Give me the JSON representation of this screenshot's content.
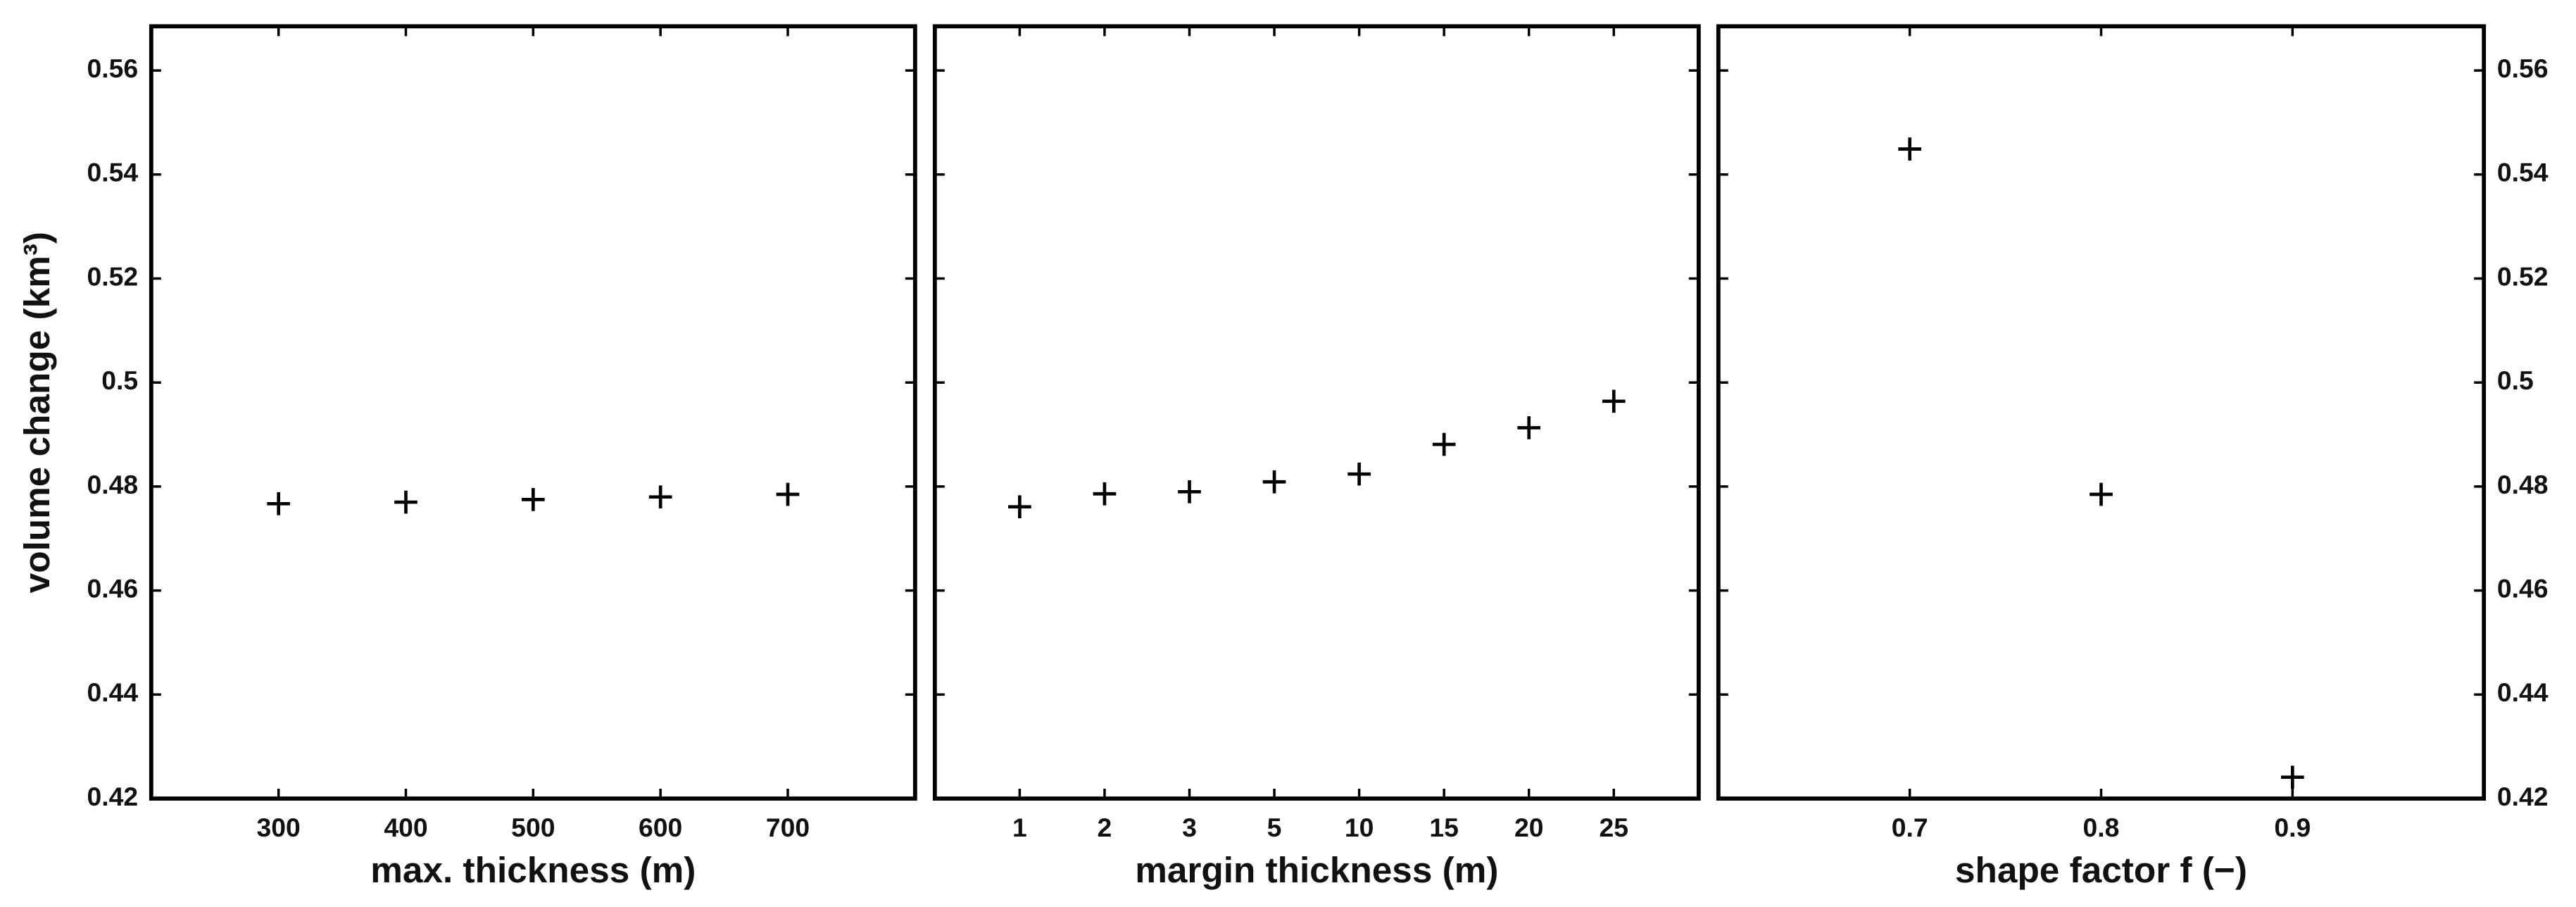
{
  "chart_data": [
    {
      "type": "scatter",
      "xlabel": "max. thickness (m)",
      "ylabel": "volume change (km³)",
      "x": [
        300,
        400,
        500,
        600,
        700
      ],
      "values": [
        0.4767,
        0.477,
        0.4775,
        0.478,
        0.4785
      ],
      "xlim": [
        200,
        800
      ],
      "xticks": [
        300,
        400,
        500,
        600,
        700
      ],
      "ylim": [
        0.42,
        0.5685
      ],
      "yticks": [
        0.42,
        0.44,
        0.46,
        0.48,
        0.5,
        0.52,
        0.54,
        0.56
      ],
      "ytick_labels": "left",
      "color": "#000000",
      "marker": "+"
    },
    {
      "type": "scatter",
      "xlabel": "margin thickness (m)",
      "categories": [
        "1",
        "2",
        "3",
        "5",
        "10",
        "15",
        "20",
        "25"
      ],
      "values": [
        0.4761,
        0.4786,
        0.479,
        0.4809,
        0.4824,
        0.4881,
        0.4913,
        0.4964
      ],
      "ylim": [
        0.42,
        0.5685
      ],
      "yticks": [
        0.42,
        0.44,
        0.46,
        0.48,
        0.5,
        0.52,
        0.54,
        0.56
      ],
      "ytick_labels": "none",
      "color": "#000000",
      "marker": "+"
    },
    {
      "type": "scatter",
      "xlabel": "shape factor f (−)",
      "x": [
        0.7,
        0.8,
        0.9
      ],
      "values": [
        0.5449,
        0.4785,
        0.4241
      ],
      "xlim": [
        0.6,
        1.0
      ],
      "xticks": [
        0.7,
        0.8,
        0.9
      ],
      "ylim": [
        0.42,
        0.5685
      ],
      "yticks": [
        0.42,
        0.44,
        0.46,
        0.48,
        0.5,
        0.52,
        0.54,
        0.56
      ],
      "ytick_labels": "right",
      "color": "#000000",
      "marker": "+"
    }
  ]
}
